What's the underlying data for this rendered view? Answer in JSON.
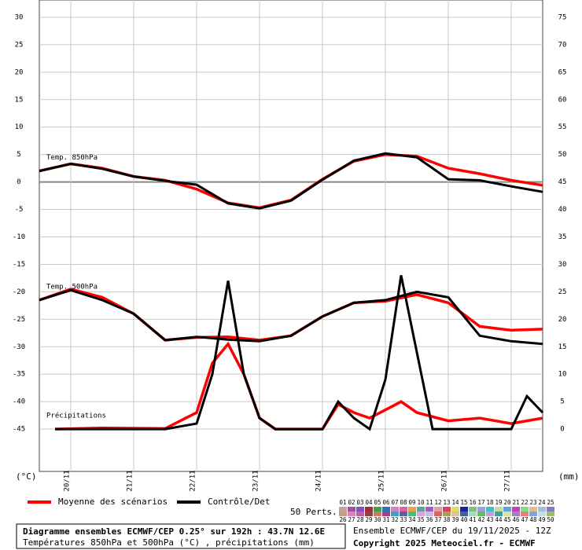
{
  "chart_data": {
    "type": "line",
    "title": "Diagramme ensembles ECMWF/CEP 0.25° sur 192h : 43.7N 12.6E",
    "subtitle": "Températures 850hPa et 500hPa (°C) , précipitations (mm)",
    "run_info": "Ensemble ECMWF/CEP du 19/11/2025 - 12Z",
    "copyright": "Copyright 2025 Meteociel.fr - ECMWF",
    "y_unit": "(°C)",
    "y2_unit": "(mm)",
    "members_label": "50 Perts.",
    "xlim": [
      0,
      192
    ],
    "xticks": [
      {
        "value": 12,
        "label": "20/11"
      },
      {
        "value": 36,
        "label": "21/11"
      },
      {
        "value": 60,
        "label": "22/11"
      },
      {
        "value": 84,
        "label": "23/11"
      },
      {
        "value": 108,
        "label": "24/11"
      },
      {
        "value": 132,
        "label": "25/11"
      },
      {
        "value": 156,
        "label": "26/11"
      },
      {
        "value": 180,
        "label": "27/11"
      }
    ],
    "ylim": [
      -52.71,
      33.14
    ],
    "yticks": [
      30,
      25,
      20,
      15,
      10,
      5,
      0,
      -5,
      -10,
      -15,
      -20,
      -25,
      -30,
      -35,
      -40,
      -45
    ],
    "y2lim": [
      -7.71,
      78.14
    ],
    "y2ticks": [
      75,
      70,
      65,
      60,
      55,
      50,
      45,
      40,
      35,
      30,
      25,
      20,
      15,
      10,
      5,
      0
    ],
    "grid": true,
    "legend": [
      {
        "name": "Moyenne des scénarios",
        "color": "#ff0000"
      },
      {
        "name": "Contrôle/Det",
        "color": "#000000"
      }
    ],
    "fields": [
      {
        "label": "Temp. 850hPa",
        "axis": "y",
        "mean": {
          "x": [
            0,
            12,
            24,
            36,
            48,
            60,
            72,
            84,
            96,
            108,
            120,
            132,
            144,
            156,
            168,
            180,
            192
          ],
          "values": [
            2,
            3.3,
            2.5,
            1,
            0.3,
            -1.3,
            -3.8,
            -4.7,
            -3.3,
            0.5,
            3.8,
            5,
            4.7,
            2.5,
            1.5,
            0.3,
            -0.6
          ]
        },
        "control": {
          "x": [
            0,
            12,
            24,
            36,
            48,
            60,
            72,
            84,
            96,
            108,
            120,
            132,
            144,
            156,
            168,
            180,
            192
          ],
          "values": [
            2,
            3.3,
            2.4,
            1,
            0.2,
            -0.5,
            -3.9,
            -4.8,
            -3.4,
            0.4,
            3.9,
            5.2,
            4.5,
            0.5,
            0.3,
            -0.8,
            -1.8
          ]
        }
      },
      {
        "label": "Temp. 500hPa",
        "axis": "y",
        "mean": {
          "x": [
            0,
            12,
            24,
            36,
            48,
            60,
            72,
            84,
            96,
            108,
            120,
            132,
            144,
            156,
            168,
            180,
            192
          ],
          "values": [
            -21.5,
            -19.5,
            -21,
            -24,
            -28.8,
            -28.3,
            -28.2,
            -28.8,
            -28,
            -24.5,
            -22,
            -21.7,
            -20.5,
            -22,
            -26.3,
            -27,
            -26.8
          ]
        },
        "control": {
          "x": [
            0,
            12,
            24,
            36,
            48,
            60,
            72,
            84,
            96,
            108,
            120,
            132,
            144,
            156,
            168,
            180,
            192
          ],
          "values": [
            -21.5,
            -19.7,
            -21.5,
            -24,
            -28.8,
            -28.2,
            -28.7,
            -29,
            -28,
            -24.5,
            -22,
            -21.5,
            -20,
            -21,
            -28,
            -29,
            -29.5
          ]
        }
      },
      {
        "label": "Précipitations",
        "axis": "y2",
        "mean": {
          "x": [
            6,
            24,
            48,
            60,
            66,
            72,
            78,
            84,
            90,
            108,
            114,
            120,
            126,
            132,
            138,
            144,
            156,
            168,
            180,
            192
          ],
          "values": [
            0,
            0.2,
            0.1,
            3,
            12,
            15.5,
            10,
            2,
            0,
            0,
            4.5,
            3,
            2,
            3.5,
            5,
            3,
            1.5,
            2,
            1,
            2
          ]
        },
        "control": {
          "x": [
            6,
            48,
            60,
            66,
            72,
            78,
            84,
            90,
            108,
            114,
            120,
            126,
            132,
            138,
            144,
            150,
            180,
            186,
            192
          ],
          "values": [
            0,
            0,
            1,
            10,
            27,
            10,
            2,
            0,
            0,
            5,
            2,
            0,
            9,
            28,
            14,
            0,
            0,
            6,
            3
          ]
        }
      }
    ],
    "members": [
      {
        "label": "01",
        "color": "#c8a0a0"
      },
      {
        "label": "02",
        "color": "#a050a0"
      },
      {
        "label": "03",
        "color": "#8050c0"
      },
      {
        "label": "04",
        "color": "#a03030"
      },
      {
        "label": "05",
        "color": "#40a040"
      },
      {
        "label": "06",
        "color": "#3070c0"
      },
      {
        "label": "07",
        "color": "#d080d0"
      },
      {
        "label": "08",
        "color": "#e060a0"
      },
      {
        "label": "09",
        "color": "#f0a040"
      },
      {
        "label": "10",
        "color": "#60a0a0"
      },
      {
        "label": "11",
        "color": "#a060c0"
      },
      {
        "label": "12",
        "color": "#e0a0a0"
      },
      {
        "label": "13",
        "color": "#e04060"
      },
      {
        "label": "14",
        "color": "#e0e060"
      },
      {
        "label": "15",
        "color": "#2020a0"
      },
      {
        "label": "16",
        "color": "#80c080"
      },
      {
        "label": "17",
        "color": "#a0a0e0"
      },
      {
        "label": "18",
        "color": "#40c0c0"
      },
      {
        "label": "19",
        "color": "#c0e0a0"
      },
      {
        "label": "20",
        "color": "#60a0e0"
      },
      {
        "label": "21",
        "color": "#c040c0"
      },
      {
        "label": "22",
        "color": "#80e080"
      },
      {
        "label": "23",
        "color": "#e0c080"
      },
      {
        "label": "24",
        "color": "#a0c0e0"
      },
      {
        "label": "25",
        "color": "#8080c0"
      },
      {
        "label": "26",
        "color": "#c0a080"
      },
      {
        "label": "27",
        "color": "#e080c0"
      },
      {
        "label": "28",
        "color": "#c060a0"
      },
      {
        "label": "29",
        "color": "#904040"
      },
      {
        "label": "30",
        "color": "#c08060"
      },
      {
        "label": "31",
        "color": "#a04080"
      },
      {
        "label": "32",
        "color": "#40a0c0"
      },
      {
        "label": "33",
        "color": "#6060a0"
      },
      {
        "label": "34",
        "color": "#40c080"
      },
      {
        "label": "35",
        "color": "#e0a0e0"
      },
      {
        "label": "36",
        "color": "#c0c0e0"
      },
      {
        "label": "37",
        "color": "#e06060"
      },
      {
        "label": "38",
        "color": "#a0a060"
      },
      {
        "label": "39",
        "color": "#e0c0a0"
      },
      {
        "label": "40",
        "color": "#4060a0"
      },
      {
        "label": "41",
        "color": "#a0e0c0"
      },
      {
        "label": "42",
        "color": "#60c060"
      },
      {
        "label": "43",
        "color": "#c0a0e0"
      },
      {
        "label": "44",
        "color": "#40a0a0"
      },
      {
        "label": "45",
        "color": "#e0e0a0"
      },
      {
        "label": "46",
        "color": "#a080c0"
      },
      {
        "label": "47",
        "color": "#e08080"
      },
      {
        "label": "48",
        "color": "#80a0e0"
      },
      {
        "label": "49",
        "color": "#c0e0e0"
      },
      {
        "label": "50",
        "color": "#a0c060"
      }
    ]
  }
}
